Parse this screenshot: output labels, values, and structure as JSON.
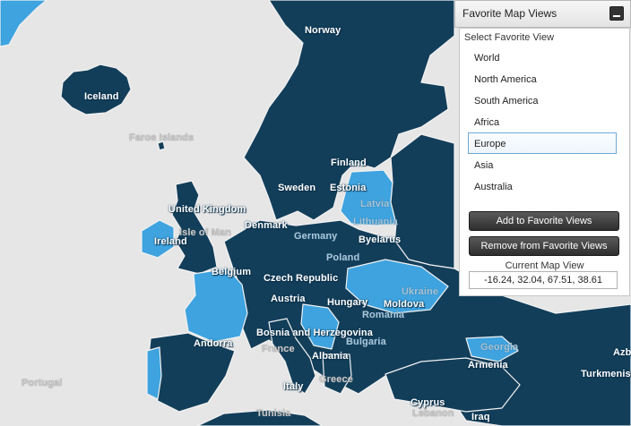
{
  "map": {
    "colors": {
      "sea": "#e6e6e6",
      "dark": "#123e5a",
      "light": "#3ea3df",
      "border": "#f2f2f2"
    },
    "labels": {
      "norway": "Norway",
      "iceland": "Iceland",
      "faroe": "Faroe Islands",
      "finland": "Finland",
      "sweden": "Sweden",
      "estonia": "Estonia",
      "latvia": "Latvia",
      "lithuania": "Lithuania",
      "uk": "United Kingdom",
      "isle_of_man": "Isle of Man",
      "denmark": "Denmark",
      "germany": "Germany",
      "ireland": "Ireland",
      "byelarus": "Byelarus",
      "poland": "Poland",
      "belgium": "Belgium",
      "czech": "Czech Republic",
      "ukraine": "Ukraine",
      "austria": "Austria",
      "hungary": "Hungary",
      "moldova": "Moldova",
      "romania": "Romania",
      "bosnia": "Bosnia and Herzegovina",
      "andorra": "Andorra",
      "france": "France",
      "bulgaria": "Bulgaria",
      "georgia": "Georgia",
      "albania": "Albania",
      "armenia": "Armenia",
      "azerbaijan": "Azb",
      "turkmenistan": "Turkmenis",
      "portugal": "Portugal",
      "italy": "Italy",
      "greece": "Greece",
      "cyprus": "Cyprus",
      "tunisia": "Tunisia",
      "lebanon": "Lebanon",
      "iraq": "Iraq"
    }
  },
  "panel": {
    "title": "Favorite Map Views",
    "select_label": "Select Favorite View",
    "views": [
      "World",
      "North America",
      "South America",
      "Africa",
      "Europe",
      "Asia",
      "Australia"
    ],
    "selected": "Europe",
    "add_button": "Add to Favorite Views",
    "remove_button": "Remove from Favorite Views",
    "current_label": "Current Map View",
    "current_value": "-16.24, 32.04, 67.51, 38.61"
  }
}
